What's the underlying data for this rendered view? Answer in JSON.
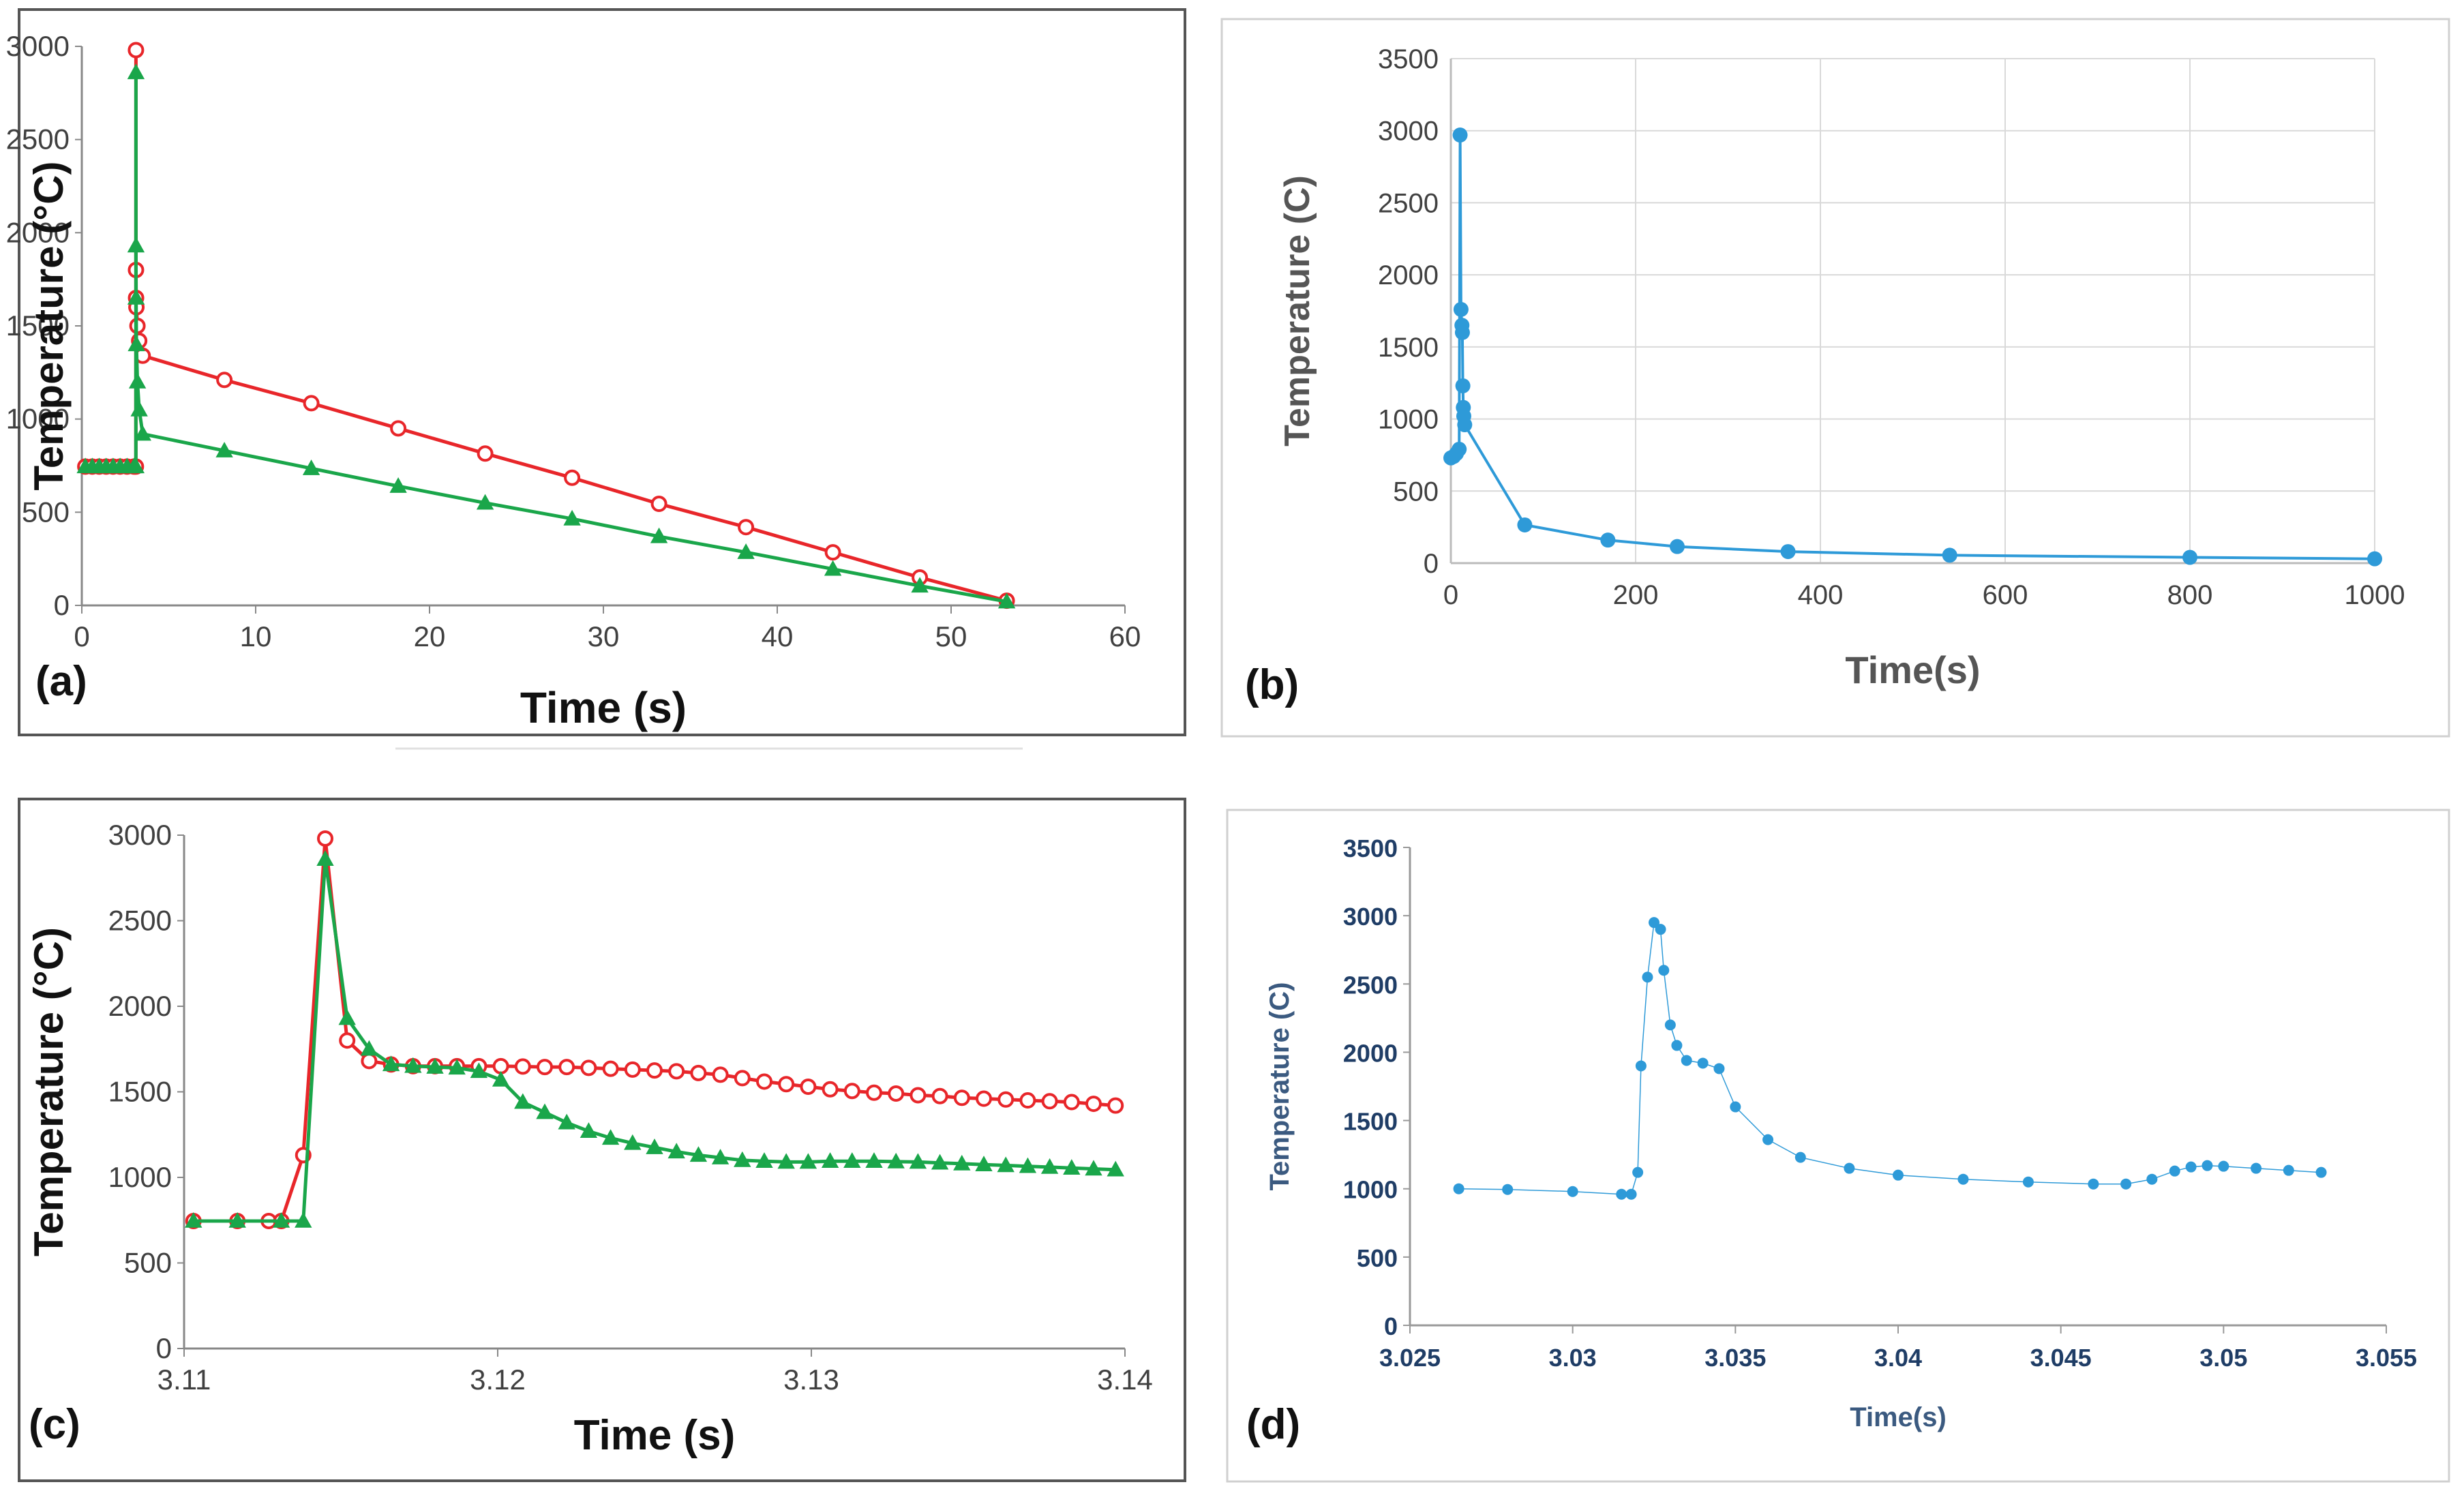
{
  "chart_data": [
    {
      "panel": "(a)",
      "type": "line",
      "xlabel": "Time (s)",
      "ylabel": "Temperature (°C)",
      "xlim": [
        0,
        60
      ],
      "ylim": [
        0,
        3000
      ],
      "xticks": [
        "0",
        "10",
        "20",
        "30",
        "40",
        "50",
        "60"
      ],
      "yticks": [
        "0",
        "500",
        "1000",
        "1500",
        "2000",
        "2500",
        "3000"
      ],
      "series": [
        {
          "color": "#e8262a",
          "marker": "circle",
          "x": [
            0.2,
            0.6,
            1.0,
            1.4,
            1.8,
            2.2,
            2.6,
            3.0,
            3.11,
            3.114,
            3.116,
            3.12,
            3.14,
            3.2,
            3.3,
            3.5,
            8.2,
            13.2,
            18.2,
            23.2,
            28.2,
            33.2,
            38.2,
            43.2,
            48.2,
            53.2
          ],
          "y": [
            745,
            745,
            745,
            745,
            745,
            745,
            745,
            745,
            745,
            2980,
            1800,
            1650,
            1600,
            1500,
            1420,
            1340,
            1210,
            1085,
            950,
            815,
            685,
            545,
            420,
            285,
            150,
            25
          ]
        },
        {
          "color": "#1aa64a",
          "marker": "triangle",
          "x": [
            0.2,
            0.6,
            1.0,
            1.4,
            1.8,
            2.2,
            2.6,
            3.0,
            3.11,
            3.114,
            3.115,
            3.12,
            3.14,
            3.2,
            3.3,
            3.5,
            8.2,
            13.2,
            18.2,
            23.2,
            28.2,
            33.2,
            38.2,
            43.2,
            48.2,
            53.2
          ],
          "y": [
            745,
            745,
            745,
            745,
            745,
            745,
            745,
            745,
            745,
            2860,
            1930,
            1650,
            1400,
            1200,
            1050,
            920,
            830,
            735,
            640,
            550,
            465,
            370,
            285,
            195,
            105,
            20
          ]
        }
      ]
    },
    {
      "panel": "(b)",
      "type": "line",
      "xlabel": "Time(s)",
      "ylabel": "Temperature (C)",
      "xlim": [
        0,
        1000
      ],
      "ylim": [
        0,
        3500
      ],
      "xticks": [
        "0",
        "200",
        "400",
        "600",
        "800",
        "1000"
      ],
      "yticks": [
        "0",
        "500",
        "1000",
        "1500",
        "2000",
        "2500",
        "3000",
        "3500"
      ],
      "grid": true,
      "series": [
        {
          "color": "#2e9ad8",
          "marker": "circle",
          "x": [
            0,
            3,
            6,
            9,
            10,
            11,
            12,
            12.5,
            13,
            13.5,
            14,
            15,
            80,
            170,
            245,
            365,
            540,
            800,
            1000
          ],
          "y": [
            730,
            740,
            760,
            790,
            2970,
            1760,
            1650,
            1600,
            1230,
            1080,
            1020,
            960,
            265,
            160,
            115,
            80,
            55,
            40,
            30
          ]
        }
      ]
    },
    {
      "panel": "(c)",
      "type": "line",
      "xlabel": "Time (s)",
      "ylabel": "Temperature (°C)",
      "xlim": [
        3.11,
        3.14
      ],
      "ylim": [
        0,
        3000
      ],
      "xticks": [
        "3.11",
        "3.12",
        "3.13",
        "3.14"
      ],
      "yticks": [
        "0",
        "500",
        "1000",
        "1500",
        "2000",
        "2500",
        "3000"
      ],
      "series": [
        {
          "color": "#e8262a",
          "marker": "circle",
          "x": [
            3.1103,
            3.1117,
            3.1131,
            3.1145,
            3.1159,
            3.1173,
            3.1187,
            3.1201,
            3.1215,
            3.1229,
            3.1243,
            3.1257,
            3.1271,
            3.1285,
            3.1299,
            3.1313,
            3.1327,
            3.1341,
            3.1355,
            3.1369,
            3.1383,
            3.1397,
            3.1127,
            3.1138,
            3.1152,
            3.1166,
            3.118,
            3.1194,
            3.1208,
            3.1222,
            3.1236,
            3.125,
            3.1264,
            3.1278,
            3.1292,
            3.1306,
            3.132,
            3.1334,
            3.1348,
            3.1362,
            3.1376,
            3.139
          ],
          "y": [
            745,
            745,
            745,
            2980,
            1680,
            1650,
            1650,
            1650,
            1645,
            1640,
            1630,
            1620,
            1600,
            1560,
            1530,
            1505,
            1490,
            1475,
            1460,
            1450,
            1440,
            1420,
            745,
            1130,
            1800,
            1660,
            1650,
            1650,
            1648,
            1645,
            1635,
            1625,
            1610,
            1580,
            1545,
            1515,
            1495,
            1480,
            1465,
            1455,
            1445,
            1430
          ]
        },
        {
          "color": "#1aa64a",
          "marker": "triangle",
          "x": [
            3.1103,
            3.1117,
            3.1131,
            3.1138,
            3.1145,
            3.1152,
            3.1159,
            3.1166,
            3.1173,
            3.118,
            3.1187,
            3.1194,
            3.1201,
            3.1208,
            3.1215,
            3.1222,
            3.1229,
            3.1236,
            3.1243,
            3.125,
            3.1257,
            3.1264,
            3.1271,
            3.1278,
            3.1285,
            3.1292,
            3.1299,
            3.1306,
            3.1313,
            3.132,
            3.1327,
            3.1334,
            3.1341,
            3.1348,
            3.1355,
            3.1362,
            3.1369,
            3.1376,
            3.1383,
            3.139,
            3.1397
          ],
          "y": [
            745,
            745,
            745,
            745,
            2860,
            1930,
            1750,
            1660,
            1650,
            1645,
            1640,
            1620,
            1570,
            1440,
            1380,
            1320,
            1270,
            1230,
            1200,
            1175,
            1150,
            1130,
            1115,
            1100,
            1095,
            1090,
            1090,
            1095,
            1095,
            1095,
            1092,
            1090,
            1085,
            1080,
            1075,
            1070,
            1065,
            1060,
            1055,
            1050,
            1045
          ]
        }
      ]
    },
    {
      "panel": "(d)",
      "type": "scatter",
      "xlabel": "Time(s)",
      "ylabel": "Temperature (C)",
      "xlim": [
        3.025,
        3.055
      ],
      "ylim": [
        0,
        3500
      ],
      "xticks": [
        "3.025",
        "3.03",
        "3.035",
        "3.04",
        "3.045",
        "3.05",
        "3.055"
      ],
      "yticks": [
        "0",
        "500",
        "1000",
        "1500",
        "2000",
        "2500",
        "3000",
        "3500"
      ],
      "series": [
        {
          "color": "#2e9ad8",
          "marker": "circle",
          "x": [
            3.0265,
            3.028,
            3.03,
            3.0315,
            3.0318,
            3.032,
            3.0321,
            3.0323,
            3.0325,
            3.0327,
            3.0328,
            3.033,
            3.0332,
            3.0335,
            3.034,
            3.0345,
            3.035,
            3.036,
            3.037,
            3.0385,
            3.04,
            3.042,
            3.044,
            3.046,
            3.047,
            3.0478,
            3.0485,
            3.049,
            3.0495,
            3.05,
            3.051,
            3.052,
            3.053
          ],
          "y": [
            1000,
            995,
            980,
            960,
            960,
            1120,
            1900,
            2550,
            2950,
            2900,
            2600,
            2200,
            2050,
            1940,
            1920,
            1880,
            1600,
            1360,
            1230,
            1150,
            1100,
            1070,
            1050,
            1035,
            1035,
            1070,
            1130,
            1160,
            1170,
            1165,
            1150,
            1135,
            1120
          ]
        }
      ]
    }
  ],
  "panel_labels": [
    "(a)",
    "(b)",
    "(c)",
    "(d)"
  ]
}
